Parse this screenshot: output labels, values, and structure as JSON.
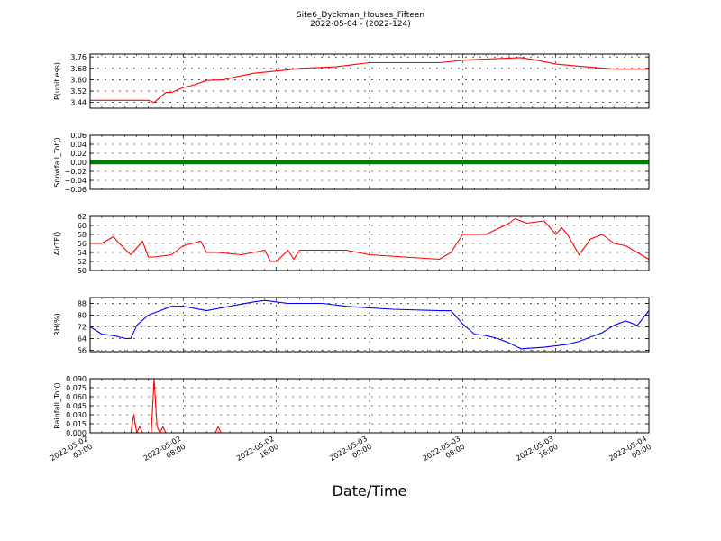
{
  "title": "Site6_Dyckman_Houses_Fifteen",
  "subtitle": "2022-05-04 - (2022-124)",
  "xlabel": "Date/Time",
  "x_ticks": [
    "2022-05-02\n00:00",
    "2022-05-02\n08:00",
    "2022-05-02\n16:00",
    "2022-05-03\n00:00",
    "2022-05-03\n08:00",
    "2022-05-03\n16:00",
    "2022-05-04\n00:00"
  ],
  "chart_data": [
    {
      "type": "line",
      "ylabel": "P(unitless)",
      "color": "#ff0000",
      "ylim": [
        3.4,
        3.78
      ],
      "yticks": [
        "3.44",
        "3.52",
        "3.60",
        "3.68",
        "3.76"
      ],
      "xlim": [
        "2022-05-02 00:00",
        "2022-05-04 00:00"
      ],
      "grid": true,
      "x": [
        "2022-05-02 00:00",
        "2022-05-02 05:00",
        "2022-05-02 05:30",
        "2022-05-02 06:30",
        "2022-05-02 07:00",
        "2022-05-02 08:00",
        "2022-05-02 09:00",
        "2022-05-02 10:00",
        "2022-05-02 11:30",
        "2022-05-02 12:30",
        "2022-05-02 14:00",
        "2022-05-02 17:00",
        "2022-05-02 18:00",
        "2022-05-02 21:00",
        "2022-05-03 00:00",
        "2022-05-03 06:00",
        "2022-05-03 08:30",
        "2022-05-03 13:00",
        "2022-05-03 14:30",
        "2022-05-03 16:00",
        "2022-05-03 18:00",
        "2022-05-03 21:00",
        "2022-05-04 00:00"
      ],
      "y": [
        3.455,
        3.455,
        3.44,
        3.51,
        3.51,
        3.545,
        3.565,
        3.595,
        3.6,
        3.62,
        3.645,
        3.67,
        3.68,
        3.69,
        3.72,
        3.72,
        3.74,
        3.755,
        3.735,
        3.71,
        3.695,
        3.675,
        3.675
      ]
    },
    {
      "type": "line",
      "ylabel": "Snowfall_Tot()",
      "color": "#008000",
      "ylim": [
        -0.06,
        0.06
      ],
      "yticks": [
        "−0.06",
        "−0.04",
        "−0.02",
        "0.00",
        "0.02",
        "0.04",
        "0.06"
      ],
      "xlim": [
        "2022-05-02 00:00",
        "2022-05-04 00:00"
      ],
      "grid": true,
      "x": [
        "2022-05-02 00:00",
        "2022-05-04 00:00"
      ],
      "y": [
        0,
        0
      ]
    },
    {
      "type": "line",
      "ylabel": "AirTF()",
      "color": "#ff0000",
      "ylim": [
        50,
        62
      ],
      "yticks": [
        "50",
        "52",
        "54",
        "56",
        "58",
        "60",
        "62"
      ],
      "xlim": [
        "2022-05-02 00:00",
        "2022-05-04 00:00"
      ],
      "grid": true,
      "x": [
        "2022-05-02 00:00",
        "2022-05-02 01:00",
        "2022-05-02 02:00",
        "2022-05-02 02:30",
        "2022-05-02 03:30",
        "2022-05-02 04:30",
        "2022-05-02 05:00",
        "2022-05-02 05:30",
        "2022-05-02 07:00",
        "2022-05-02 08:00",
        "2022-05-02 09:30",
        "2022-05-02 10:00",
        "2022-05-02 11:00",
        "2022-05-02 13:00",
        "2022-05-02 15:00",
        "2022-05-02 15:30",
        "2022-05-02 16:00",
        "2022-05-02 17:00",
        "2022-05-02 17:30",
        "2022-05-02 18:00",
        "2022-05-02 20:00",
        "2022-05-02 22:00",
        "2022-05-03 00:00",
        "2022-05-03 03:00",
        "2022-05-03 06:00",
        "2022-05-03 07:00",
        "2022-05-03 08:00",
        "2022-05-03 10:00",
        "2022-05-03 12:00",
        "2022-05-03 12:30",
        "2022-05-03 13:30",
        "2022-05-03 15:00",
        "2022-05-03 16:00",
        "2022-05-03 16:30",
        "2022-05-03 17:00",
        "2022-05-03 18:00",
        "2022-05-03 19:00",
        "2022-05-03 20:00",
        "2022-05-03 21:00",
        "2022-05-03 22:00",
        "2022-05-03 23:00",
        "2022-05-04 00:00"
      ],
      "y": [
        56,
        56,
        57.5,
        56,
        53.5,
        56.5,
        53,
        53,
        53.5,
        55.5,
        56.5,
        54,
        54,
        53.5,
        54.5,
        52,
        52,
        54.5,
        52.5,
        54.5,
        54.5,
        54.5,
        53.5,
        53,
        52.5,
        54,
        58,
        58,
        60.5,
        61.5,
        60.5,
        61,
        58,
        59.5,
        58,
        53.5,
        57,
        58,
        56,
        55.5,
        54,
        52.5
      ]
    },
    {
      "type": "line",
      "ylabel": "RH(%)",
      "color": "#0000ff",
      "ylim": [
        55,
        92
      ],
      "yticks": [
        "56",
        "64",
        "72",
        "80",
        "88"
      ],
      "xlim": [
        "2022-05-02 00:00",
        "2022-05-04 00:00"
      ],
      "grid": true,
      "x": [
        "2022-05-02 00:00",
        "2022-05-02 01:00",
        "2022-05-02 02:00",
        "2022-05-02 03:00",
        "2022-05-02 03:30",
        "2022-05-02 04:00",
        "2022-05-02 05:00",
        "2022-05-02 06:00",
        "2022-05-02 07:00",
        "2022-05-02 08:00",
        "2022-05-02 10:00",
        "2022-05-02 12:00",
        "2022-05-02 14:00",
        "2022-05-02 15:00",
        "2022-05-02 16:00",
        "2022-05-02 17:00",
        "2022-05-02 20:00",
        "2022-05-02 22:00",
        "2022-05-03 00:00",
        "2022-05-03 02:00",
        "2022-05-03 06:00",
        "2022-05-03 07:00",
        "2022-05-03 08:00",
        "2022-05-03 09:00",
        "2022-05-03 10:00",
        "2022-05-03 11:00",
        "2022-05-03 12:00",
        "2022-05-03 13:00",
        "2022-05-03 15:00",
        "2022-05-03 17:00",
        "2022-05-03 18:00",
        "2022-05-03 20:00",
        "2022-05-03 21:00",
        "2022-05-03 22:00",
        "2022-05-03 23:00",
        "2022-05-04 00:00"
      ],
      "y": [
        72,
        67,
        66,
        64,
        64,
        73,
        80,
        83,
        86,
        86,
        83,
        86,
        89,
        90,
        89,
        88,
        88,
        86,
        85,
        84,
        83,
        83,
        74,
        67,
        66,
        64,
        61,
        57,
        58,
        60,
        62,
        68,
        73,
        76,
        73,
        83
      ]
    },
    {
      "type": "line",
      "ylabel": "Rainfall_Tot()",
      "color": "#ff0000",
      "ylim": [
        0,
        0.09
      ],
      "yticks": [
        "0.000",
        "0.015",
        "0.030",
        "0.045",
        "0.060",
        "0.075",
        "0.090"
      ],
      "xlim": [
        "2022-05-02 00:00",
        "2022-05-04 00:00"
      ],
      "grid": true,
      "x": [
        "2022-05-02 00:00",
        "2022-05-02 03:30",
        "2022-05-02 03:45",
        "2022-05-02 04:00",
        "2022-05-02 04:15",
        "2022-05-02 04:30",
        "2022-05-02 05:15",
        "2022-05-02 05:30",
        "2022-05-02 05:45",
        "2022-05-02 06:00",
        "2022-05-02 06:15",
        "2022-05-02 06:30",
        "2022-05-02 10:45",
        "2022-05-02 11:00",
        "2022-05-02 11:15",
        "2022-05-04 00:00"
      ],
      "y": [
        0,
        0,
        0.03,
        0,
        0.01,
        0,
        0,
        0.09,
        0.01,
        0,
        0.01,
        0,
        0,
        0.01,
        0,
        0
      ]
    }
  ]
}
